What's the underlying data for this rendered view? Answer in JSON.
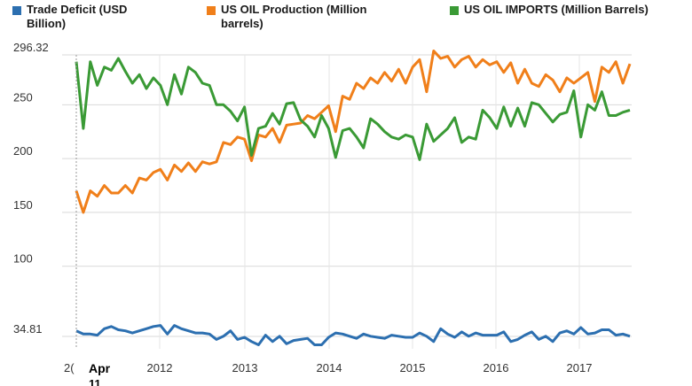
{
  "chart_data": {
    "type": "line",
    "title": "",
    "xlabel": "",
    "ylabel": "",
    "ylim": [
      34.81,
      296.32
    ],
    "y_ticks": [
      34.81,
      100,
      150,
      200,
      250,
      296.32
    ],
    "y_tick_labels": [
      "34.81",
      "100",
      "150",
      "200",
      "250",
      "296.32"
    ],
    "x_axis": {
      "start_label_partial": "2(",
      "cursor_label": "Apr",
      "cursor_sublabel": "11",
      "year_labels": [
        "2012",
        "2013",
        "2014",
        "2015",
        "2016",
        "2017"
      ]
    },
    "grid": true,
    "legend_position": "top",
    "series": [
      {
        "name": "Trade Deficit (USD Billion)",
        "color": "#2c6fb0",
        "values": [
          40,
          37,
          37,
          36,
          42,
          44,
          41,
          40,
          38,
          40,
          42,
          44,
          45,
          37,
          45,
          42,
          40,
          38,
          38,
          37,
          32,
          35,
          40,
          32,
          34,
          30,
          27,
          36,
          30,
          35,
          28,
          31,
          32,
          33,
          27,
          27,
          34,
          38,
          37,
          35,
          33,
          37,
          35,
          34,
          33,
          36,
          35,
          34,
          34,
          38,
          35,
          30,
          42,
          37,
          34,
          39,
          35,
          38,
          36,
          36,
          36,
          39,
          30,
          32,
          36,
          39,
          32,
          35,
          30,
          38,
          40,
          37,
          43,
          37,
          38,
          41,
          41,
          36,
          37,
          35
        ]
      },
      {
        "name": "US OIL Production (Million barrels)",
        "color": "#f07f1a",
        "values": [
          170,
          150,
          170,
          165,
          175,
          168,
          168,
          175,
          168,
          182,
          180,
          187,
          190,
          180,
          194,
          188,
          196,
          188,
          197,
          195,
          197,
          215,
          213,
          220,
          218,
          198,
          222,
          220,
          228,
          215,
          231,
          232,
          233,
          240,
          237,
          243,
          249,
          225,
          258,
          255,
          270,
          265,
          275,
          270,
          280,
          272,
          283,
          270,
          285,
          292,
          262,
          300,
          293,
          295,
          285,
          292,
          295,
          285,
          292,
          287,
          290,
          280,
          289,
          270,
          283,
          270,
          267,
          278,
          273,
          262,
          275,
          270,
          275,
          280,
          253,
          285,
          280,
          290,
          270,
          288
        ]
      },
      {
        "name": "US OIL IMPORTS (Million Barrels)",
        "color": "#3a9a35",
        "values": [
          290,
          228,
          290,
          268,
          285,
          282,
          293,
          281,
          270,
          278,
          265,
          275,
          268,
          250,
          278,
          260,
          285,
          280,
          270,
          268,
          250,
          250,
          244,
          235,
          248,
          203,
          228,
          230,
          242,
          232,
          251,
          252,
          236,
          230,
          220,
          240,
          228,
          201,
          226,
          228,
          220,
          210,
          237,
          232,
          225,
          220,
          218,
          222,
          220,
          199,
          232,
          216,
          222,
          228,
          238,
          215,
          220,
          218,
          245,
          238,
          228,
          248,
          230,
          247,
          230,
          252,
          250,
          242,
          234,
          241,
          243,
          263,
          220,
          250,
          245,
          262,
          240,
          240,
          243,
          245
        ]
      }
    ]
  }
}
